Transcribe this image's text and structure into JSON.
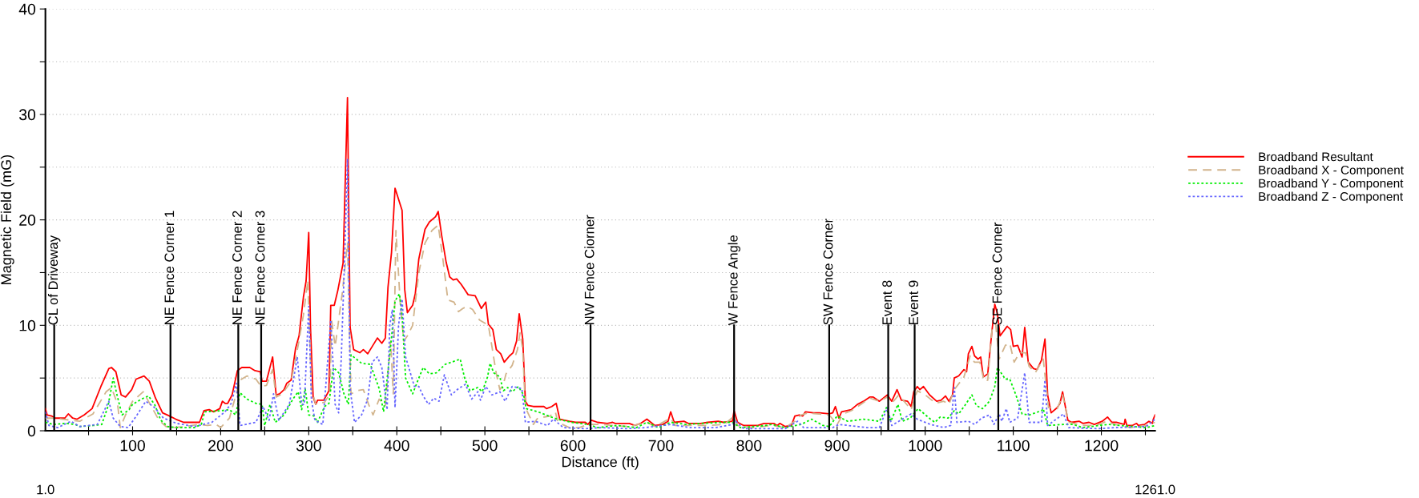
{
  "chart_data": {
    "type": "line",
    "xlabel": "Distance (ft)",
    "ylabel": "Magnetic Field (mG)",
    "xlim": [
      1,
      1261
    ],
    "ylim": [
      0,
      40
    ],
    "xticks": [
      {
        "value": 50,
        "label": null
      },
      100,
      {
        "value": 150,
        "label": null
      },
      200,
      {
        "value": 250,
        "label": null
      },
      300,
      {
        "value": 350,
        "label": null
      },
      400,
      {
        "value": 450,
        "label": null
      },
      500,
      {
        "value": 550,
        "label": null
      },
      600,
      {
        "value": 650,
        "label": null
      },
      700,
      {
        "value": 750,
        "label": null
      },
      800,
      {
        "value": 850,
        "label": null
      },
      900,
      {
        "value": 950,
        "label": null
      },
      1000,
      {
        "value": 1050,
        "label": null
      },
      1100,
      {
        "value": 1150,
        "label": null
      },
      1200,
      {
        "value": 1250,
        "label": null
      }
    ],
    "yticks": [
      0,
      {
        "value": 5,
        "label": null
      },
      10,
      {
        "value": 15,
        "label": null
      },
      20,
      {
        "value": 25,
        "label": null
      },
      30,
      {
        "value": 35,
        "label": null
      },
      40
    ],
    "grid": "y",
    "legend": "right",
    "annotations": [
      "1.0",
      "1261.0"
    ],
    "ref_lines": [
      {
        "axis": "x",
        "value": 11,
        "label": "CL of Driveway"
      },
      {
        "axis": "x",
        "value": 143,
        "label": "NE Fence Corner 1"
      },
      {
        "axis": "x",
        "value": 220,
        "label": "NE Fence Corner 2"
      },
      {
        "axis": "x",
        "value": 246,
        "label": "NE Fence Corner 3"
      },
      {
        "axis": "x",
        "value": 620,
        "label": "NW Fence Ciorner"
      },
      {
        "axis": "x",
        "value": 783,
        "label": "W Fence Angle"
      },
      {
        "axis": "x",
        "value": 891,
        "label": "SW Fence Corner"
      },
      {
        "axis": "x",
        "value": 958,
        "label": "Event 8"
      },
      {
        "axis": "x",
        "value": 988,
        "label": "Event 9"
      },
      {
        "axis": "x",
        "value": 1083,
        "label": "SE Fence Corner"
      }
    ],
    "series": [
      {
        "name": "Broadband Resultant",
        "color": "#ff0000",
        "line_style": "solid",
        "x": [
          1,
          3,
          8,
          12,
          23,
          27,
          32,
          37,
          45,
          54,
          64,
          73,
          76,
          81,
          87,
          92,
          99,
          104,
          113,
          119,
          126,
          134,
          142,
          149,
          158,
          176,
          181,
          187,
          192,
          199,
          202,
          205,
          208,
          213,
          219,
          224,
          233,
          239,
          245,
          247,
          252,
          259,
          263,
          267,
          272,
          275,
          280,
          285,
          289,
          294,
          297,
          300,
          302,
          305,
          308,
          310,
          317,
          323,
          325,
          329,
          333,
          339,
          344,
          347,
          351,
          358,
          362,
          367,
          378,
          383,
          387,
          390,
          394,
          398,
          406,
          409,
          412,
          418,
          421,
          425,
          432,
          437,
          444,
          447,
          451,
          456,
          460,
          464,
          468,
          473,
          477,
          481,
          489,
          496,
          501,
          504,
          509,
          513,
          518,
          522,
          528,
          532,
          536,
          539,
          543,
          546,
          549,
          555,
          567,
          570,
          576,
          581,
          585,
          596,
          603,
          614,
          617,
          621,
          628,
          639,
          645,
          648,
          664,
          670,
          677,
          684,
          693,
          702,
          708,
          711,
          715,
          726,
          731,
          745,
          753,
          765,
          771,
          781,
          783,
          787,
          794,
          810,
          817,
          828,
          832,
          835,
          841,
          848,
          852,
          857,
          861,
          864,
          873,
          880,
          891,
          895,
          898,
          902,
          905,
          916,
          923,
          930,
          937,
          941,
          948,
          957,
          962,
          968,
          973,
          980,
          984,
          987,
          991,
          994,
          998,
          1005,
          1013,
          1018,
          1023,
          1027,
          1031,
          1033,
          1038,
          1044,
          1047,
          1049,
          1053,
          1056,
          1060,
          1063,
          1066,
          1071,
          1075,
          1079,
          1082,
          1085,
          1093,
          1097,
          1100,
          1105,
          1110,
          1113,
          1117,
          1123,
          1127,
          1132,
          1136,
          1139,
          1143,
          1150,
          1153,
          1156,
          1162,
          1166,
          1175,
          1179,
          1186,
          1192,
          1201,
          1207,
          1212,
          1217,
          1226,
          1227,
          1229,
          1235,
          1240,
          1242,
          1249,
          1254,
          1258,
          1259,
          1261
        ],
        "values": [
          2.1,
          1.5,
          1.4,
          1.2,
          1.2,
          1.6,
          1.2,
          1.1,
          1.5,
          2.1,
          4.2,
          5.9,
          6.0,
          5.6,
          3.4,
          3.2,
          3.9,
          4.9,
          5.2,
          4.7,
          3.1,
          1.7,
          1.4,
          1.1,
          0.8,
          0.8,
          1.9,
          2.0,
          1.8,
          2.1,
          2.8,
          2.6,
          2.6,
          3.4,
          5.7,
          6.0,
          6.0,
          5.7,
          5.6,
          4.7,
          4.7,
          7.0,
          3.4,
          3.5,
          3.9,
          4.5,
          4.8,
          7.8,
          9.0,
          12.7,
          14.2,
          18.8,
          9.8,
          3.2,
          2.5,
          2.9,
          2.9,
          3.8,
          11.9,
          11.9,
          13.3,
          15.9,
          31.6,
          9.8,
          7.7,
          7.4,
          7.7,
          7.3,
          8.8,
          8.3,
          8.8,
          13.6,
          16.9,
          23.0,
          20.9,
          13.4,
          11.2,
          11.9,
          13.0,
          16.3,
          19.1,
          19.8,
          20.3,
          20.8,
          18.5,
          16.0,
          14.6,
          14.3,
          14.4,
          13.9,
          13.4,
          12.9,
          12.8,
          11.6,
          12.2,
          10.1,
          9.6,
          7.7,
          7.3,
          6.5,
          7.1,
          7.4,
          8.5,
          11.1,
          8.7,
          2.8,
          2.4,
          2.3,
          2.3,
          2.1,
          2.3,
          2.6,
          1.1,
          0.9,
          0.8,
          0.8,
          0.6,
          1.0,
          0.8,
          0.7,
          0.8,
          0.7,
          0.7,
          0.5,
          0.7,
          1.1,
          0.5,
          0.6,
          0.9,
          1.8,
          0.8,
          0.9,
          0.7,
          0.7,
          0.8,
          0.9,
          0.8,
          0.9,
          1.9,
          0.8,
          0.5,
          0.5,
          0.7,
          0.7,
          0.5,
          0.7,
          0.4,
          0.5,
          1.4,
          1.5,
          1.4,
          1.8,
          1.7,
          1.7,
          1.6,
          1.7,
          2.3,
          1.2,
          1.8,
          2.0,
          2.5,
          2.8,
          3.2,
          3.2,
          2.8,
          3.4,
          2.8,
          3.9,
          2.9,
          2.8,
          2.3,
          3.7,
          4.2,
          3.9,
          4.2,
          3.4,
          2.8,
          2.9,
          3.3,
          2.8,
          3.4,
          5.0,
          5.2,
          5.8,
          5.6,
          7.3,
          8.0,
          7.1,
          6.8,
          7.0,
          5.1,
          5.4,
          8.8,
          12.0,
          11.1,
          9.0,
          9.9,
          9.6,
          8.0,
          8.1,
          7.0,
          9.8,
          6.5,
          5.9,
          5.8,
          6.7,
          8.7,
          3.4,
          1.7,
          2.2,
          2.6,
          3.7,
          1.0,
          0.8,
          0.9,
          0.7,
          0.8,
          0.6,
          0.9,
          1.3,
          0.8,
          0.8,
          0.6,
          1.1,
          0.5,
          0.5,
          0.7,
          0.5,
          0.6,
          0.9,
          0.7,
          1.1,
          1.5
        ]
      },
      {
        "name": "Broadband X - Component",
        "color": "#d2b48c",
        "line_style": "dashed",
        "x": [
          1,
          10,
          30,
          40,
          55,
          70,
          76,
          83,
          86,
          92,
          100,
          112,
          120,
          130,
          138,
          145,
          160,
          175,
          185,
          195,
          200,
          210,
          216,
          222,
          230,
          240,
          246,
          252,
          259,
          263,
          270,
          280,
          288,
          294,
          299,
          303,
          308,
          318,
          324,
          326,
          330,
          338,
          344,
          348,
          355,
          362,
          368,
          373,
          380,
          387,
          393,
          396,
          399,
          404,
          408,
          412,
          418,
          425,
          432,
          440,
          447,
          452,
          458,
          465,
          470,
          475,
          480,
          486,
          494,
          504,
          508,
          513,
          517,
          521,
          524,
          531,
          537,
          540,
          543,
          546,
          555,
          560,
          574,
          580,
          583,
          596,
          607,
          617,
          632,
          646,
          664,
          684,
          693,
          711,
          716,
          733,
          754,
          772,
          783,
          787,
          805,
          826,
          841,
          852,
          859,
          867,
          877,
          891,
          900,
          907,
          916,
          927,
          937,
          948,
          957,
          962,
          970,
          977,
          984,
          991,
          1000,
          1012,
          1021,
          1027,
          1033,
          1044,
          1051,
          1056,
          1062,
          1067,
          1071,
          1076,
          1080,
          1084,
          1091,
          1096,
          1101,
          1107,
          1114,
          1118,
          1125,
          1134,
          1140,
          1150,
          1156,
          1163,
          1179,
          1194,
          1206,
          1215,
          1233,
          1251,
          1261
        ],
        "values": [
          1.2,
          1.2,
          1.0,
          0.9,
          1.6,
          3.7,
          4.1,
          2.5,
          0.3,
          1.5,
          2.8,
          3.7,
          2.5,
          1.0,
          0.4,
          0.3,
          0.4,
          0.6,
          0.5,
          0.6,
          0.3,
          1.2,
          3.0,
          4.8,
          5.2,
          4.9,
          4.2,
          4.3,
          5.8,
          3.2,
          3.5,
          4.7,
          8.1,
          11.0,
          14.3,
          4.0,
          2.5,
          2.7,
          3.5,
          10.5,
          8.0,
          13.0,
          17.8,
          3.5,
          3.8,
          3.9,
          2.5,
          1.5,
          3.0,
          2.4,
          8.5,
          3.5,
          19.0,
          12.0,
          8.5,
          9.0,
          10.0,
          15.0,
          17.8,
          19.0,
          19.5,
          16.5,
          12.4,
          12.2,
          11.3,
          11.6,
          11.8,
          11.5,
          10.5,
          10.0,
          8.0,
          5.4,
          3.9,
          4.4,
          5.4,
          6.2,
          7.7,
          9.3,
          7.7,
          2.2,
          0.6,
          1.2,
          1.4,
          1.8,
          0.8,
          0.3,
          0.3,
          0.6,
          0.6,
          0.5,
          0.4,
          0.8,
          0.4,
          1.2,
          0.5,
          0.5,
          0.5,
          0.6,
          1.4,
          0.5,
          0.3,
          0.5,
          0.3,
          0.9,
          1.5,
          1.7,
          1.6,
          1.5,
          0.6,
          1.6,
          1.9,
          2.5,
          3.1,
          2.8,
          3.2,
          2.6,
          3.4,
          2.7,
          2.0,
          3.8,
          3.4,
          2.6,
          2.8,
          2.5,
          3.9,
          5.1,
          7.1,
          6.5,
          6.5,
          4.7,
          4.8,
          9.7,
          10.1,
          6.8,
          8.1,
          8.3,
          6.5,
          7.4,
          7.4,
          6.1,
          5.5,
          6.8,
          2.2,
          2.1,
          3.4,
          0.8,
          0.5,
          0.5,
          0.9,
          0.6,
          0.3,
          0.5,
          0.8
        ]
      },
      {
        "name": "Broadband Y - Component",
        "color": "#00ee00",
        "line_style": "dotted",
        "x": [
          1,
          10,
          25,
          35,
          40,
          55,
          65,
          72,
          78,
          82,
          88,
          96,
          100,
          110,
          118,
          125,
          132,
          140,
          150,
          170,
          178,
          182,
          200,
          210,
          217,
          222,
          230,
          240,
          247,
          250,
          256,
          262,
          272,
          282,
          288,
          292,
          296,
          300,
          306,
          310,
          318,
          323,
          328,
          334,
          340,
          345,
          348,
          360,
          370,
          380,
          385,
          393,
          398,
          403,
          406,
          410,
          418,
          425,
          430,
          437,
          445,
          455,
          462,
          472,
          477,
          483,
          492,
          497,
          503,
          506,
          510,
          517,
          521,
          526,
          531,
          538,
          544,
          547,
          560,
          582,
          599,
          617,
          628,
          650,
          672,
          684,
          697,
          711,
          729,
          747,
          769,
          781,
          790,
          819,
          826,
          841,
          859,
          871,
          884,
          891,
          900,
          912,
          930,
          948,
          956,
          961,
          969,
          974,
          983,
          992,
          999,
          1006,
          1011,
          1017,
          1026,
          1033,
          1038,
          1045,
          1053,
          1058,
          1065,
          1073,
          1079,
          1082,
          1091,
          1096,
          1103,
          1110,
          1118,
          1132,
          1134,
          1139,
          1157,
          1168,
          1179,
          1197,
          1208,
          1222,
          1251,
          1261
        ],
        "values": [
          0.8,
          0.6,
          0.7,
          0.6,
          0.4,
          0.5,
          0.6,
          2.3,
          5.0,
          3.5,
          1.5,
          2.0,
          2.5,
          3.0,
          3.3,
          2.5,
          1.0,
          0.4,
          0.3,
          0.3,
          0.6,
          1.8,
          1.9,
          2.0,
          1.5,
          3.6,
          3.0,
          2.6,
          2.5,
          0.5,
          2.5,
          0.8,
          1.5,
          3.0,
          3.7,
          2.0,
          4.0,
          1.5,
          1.4,
          0.8,
          2.3,
          2.6,
          6.0,
          5.5,
          3.5,
          2.5,
          7.2,
          6.4,
          6.3,
          4.0,
          1.8,
          8.0,
          12.3,
          13.0,
          11.0,
          5.0,
          3.5,
          5.0,
          6.0,
          5.4,
          5.5,
          6.3,
          6.5,
          6.8,
          5.0,
          3.8,
          4.1,
          3.7,
          5.1,
          6.4,
          5.5,
          5.1,
          3.8,
          4.1,
          3.7,
          4.2,
          3.4,
          2.1,
          1.8,
          1.1,
          0.8,
          0.6,
          0.3,
          0.5,
          0.3,
          0.8,
          0.3,
          0.8,
          0.6,
          0.7,
          0.8,
          0.8,
          0.3,
          0.5,
          0.6,
          0.3,
          0.6,
          1.1,
          0.5,
          0.4,
          1.4,
          0.9,
          1.1,
          0.9,
          2.2,
          0.9,
          2.5,
          0.9,
          1.2,
          2.1,
          1.6,
          1.1,
          0.8,
          1.3,
          1.2,
          1.9,
          1.6,
          2.4,
          3.4,
          2.4,
          2.1,
          2.8,
          4.2,
          6.0,
          4.9,
          4.9,
          3.4,
          1.6,
          1.5,
          1.9,
          2.1,
          0.5,
          0.6,
          0.6,
          0.3,
          0.5,
          0.6,
          0.5,
          0.3,
          0.5
        ]
      },
      {
        "name": "Broadband Z - Component",
        "color": "#6666ff",
        "line_style": "dotted",
        "x": [
          1,
          5,
          15,
          30,
          40,
          60,
          73,
          78,
          86,
          95,
          105,
          115,
          125,
          135,
          150,
          170,
          190,
          205,
          212,
          218,
          222,
          240,
          248,
          255,
          260,
          266,
          278,
          287,
          292,
          295,
          300,
          303,
          307,
          316,
          325,
          330,
          334,
          337,
          341,
          344,
          347,
          352,
          360,
          367,
          372,
          378,
          383,
          389,
          392,
          395,
          398,
          402,
          406,
          410,
          420,
          425,
          430,
          436,
          442,
          448,
          454,
          462,
          470,
          478,
          485,
          492,
          495,
          501,
          508,
          517,
          523,
          531,
          542,
          546,
          557,
          571,
          578,
          589,
          614,
          632,
          661,
          682,
          711,
          733,
          762,
          781,
          785,
          794,
          841,
          855,
          862,
          895,
          902,
          934,
          948,
          957,
          962,
          984,
          991,
          1006,
          1021,
          1029,
          1033,
          1036,
          1049,
          1056,
          1064,
          1073,
          1078,
          1084,
          1087,
          1092,
          1096,
          1105,
          1113,
          1118,
          1132,
          1136,
          1139,
          1157,
          1163,
          1197,
          1215,
          1251,
          1261
        ],
        "values": [
          1.8,
          0.5,
          0.3,
          0.9,
          0.4,
          0.6,
          2.8,
          1.2,
          0.4,
          0.3,
          1.5,
          2.8,
          2.2,
          1.2,
          0.7,
          0.4,
          0.8,
          1.8,
          2.6,
          4.5,
          0.5,
          0.8,
          2.3,
          1.0,
          3.5,
          1.0,
          2.5,
          7.0,
          2.5,
          2.5,
          11.8,
          3.0,
          1.0,
          0.6,
          10.5,
          2.5,
          1.7,
          7.0,
          17.0,
          25.8,
          4.0,
          0.8,
          1.5,
          3.0,
          6.5,
          7.0,
          6.0,
          2.0,
          10.0,
          11.5,
          2.2,
          10.0,
          12.5,
          7.0,
          4.2,
          4.2,
          3.3,
          2.5,
          3.1,
          2.8,
          5.3,
          3.4,
          4.0,
          4.4,
          3.0,
          3.7,
          2.9,
          4.2,
          3.4,
          3.7,
          2.8,
          4.2,
          4.0,
          0.8,
          0.9,
          0.5,
          1.1,
          0.3,
          0.2,
          0.3,
          0.2,
          0.3,
          0.6,
          0.3,
          0.3,
          0.6,
          0.9,
          0.2,
          0.2,
          0.9,
          0.3,
          0.3,
          0.6,
          0.3,
          0.3,
          2.2,
          0.5,
          1.6,
          1.1,
          0.6,
          0.3,
          0.5,
          4.1,
          0.8,
          0.9,
          0.6,
          1.2,
          1.5,
          0.6,
          1.6,
          0.9,
          2.1,
          0.8,
          1.2,
          5.5,
          0.8,
          0.8,
          4.8,
          0.5,
          1.6,
          0.3,
          0.2,
          0.3,
          0.4,
          1.1
        ]
      }
    ]
  }
}
